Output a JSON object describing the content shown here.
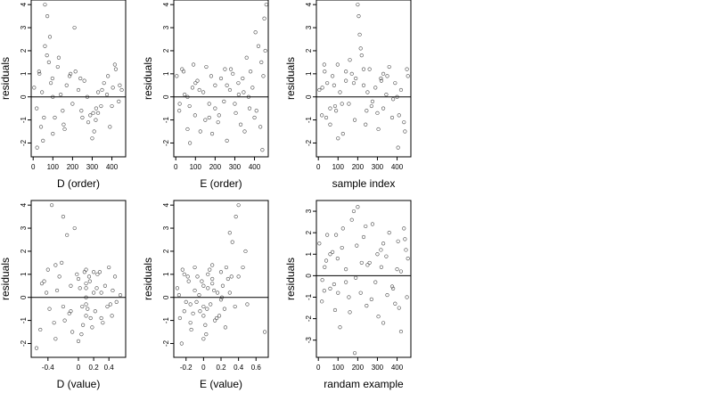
{
  "chart_data": [
    {
      "type": "scatter",
      "xlabel": "D (order)",
      "ylabel": "residuals",
      "xlim": [
        -10,
        470
      ],
      "ylim": [
        -2.6,
        4.2
      ],
      "xticks": [
        0,
        100,
        200,
        300,
        400
      ],
      "yticks": [
        -2,
        -1,
        0,
        1,
        2,
        3,
        4
      ],
      "reference_line_y": 0,
      "grid": false,
      "point_style": "open-circle",
      "x": [
        5,
        18,
        32,
        45,
        60,
        72,
        85,
        98,
        110,
        125,
        140,
        155,
        170,
        185,
        200,
        215,
        230,
        245,
        260,
        275,
        290,
        305,
        318,
        330,
        345,
        360,
        375,
        390,
        405,
        420,
        435,
        450,
        60,
        70,
        80,
        100,
        40,
        55,
        130,
        160,
        210,
        240,
        280,
        300,
        310,
        320,
        330,
        380,
        415,
        440,
        20,
        100,
        150,
        190,
        250,
        350,
        400,
        30,
        50,
        90
      ],
      "y": [
        0.4,
        -0.5,
        1.0,
        0.2,
        4.0,
        3.5,
        2.6,
        0.8,
        -0.9,
        1.3,
        0.1,
        -1.2,
        0.5,
        0.9,
        -0.3,
        1.1,
        0.3,
        -0.6,
        0.7,
        0.0,
        -0.8,
        -0.7,
        -1.0,
        0.2,
        -0.4,
        0.6,
        0.1,
        -1.3,
        0.4,
        1.2,
        -0.2,
        0.3,
        2.2,
        1.8,
        1.5,
        -1.6,
        -1.3,
        -0.9,
        1.7,
        -1.4,
        3.0,
        0.8,
        -1.1,
        -1.8,
        -1.5,
        -0.5,
        -0.7,
        0.9,
        1.4,
        0.5,
        -2.2,
        0.0,
        -0.6,
        1.0,
        -0.9,
        0.3,
        -0.4,
        1.1,
        -1.9,
        0.6
      ]
    },
    {
      "type": "scatter",
      "xlabel": "E (order)",
      "ylabel": "residuals",
      "xlim": [
        -10,
        470
      ],
      "ylim": [
        -2.6,
        4.2
      ],
      "xticks": [
        0,
        100,
        200,
        300,
        400
      ],
      "yticks": [
        -2,
        -1,
        0,
        1,
        2,
        3,
        4
      ],
      "reference_line_y": 0,
      "grid": false,
      "point_style": "open-circle",
      "x": [
        5,
        18,
        32,
        45,
        60,
        72,
        85,
        98,
        110,
        125,
        140,
        155,
        170,
        185,
        200,
        215,
        230,
        245,
        260,
        275,
        290,
        305,
        318,
        330,
        345,
        360,
        375,
        390,
        405,
        420,
        435,
        450,
        460,
        455,
        445,
        430,
        400,
        380,
        40,
        70,
        120,
        180,
        220,
        260,
        300,
        340,
        60,
        150,
        250,
        350,
        20,
        100,
        200,
        320,
        410,
        440,
        90,
        170,
        280,
        370
      ],
      "y": [
        0.9,
        -0.6,
        1.2,
        0.1,
        -1.4,
        -2.0,
        0.4,
        -0.8,
        0.7,
        -1.5,
        0.2,
        1.3,
        -0.3,
        -1.6,
        0.5,
        -1.1,
        0.8,
        -0.2,
        -1.9,
        0.3,
        1.0,
        -0.7,
        0.6,
        -1.2,
        0.2,
        1.7,
        -0.5,
        0.4,
        2.8,
        2.2,
        1.5,
        3.4,
        4.0,
        2.0,
        0.9,
        -1.3,
        -0.9,
        1.1,
        1.1,
        -0.4,
        0.3,
        0.9,
        -0.8,
        0.5,
        -0.3,
        0.8,
        0.0,
        -1.0,
        1.2,
        -1.5,
        -0.3,
        0.6,
        -0.5,
        0.1,
        -0.6,
        -2.3,
        1.4,
        -0.9,
        1.2,
        0.0
      ]
    },
    {
      "type": "scatter",
      "xlabel": "sample index",
      "ylabel": "residuals",
      "xlim": [
        -10,
        470
      ],
      "ylim": [
        -2.6,
        4.2
      ],
      "xticks": [
        0,
        100,
        200,
        300,
        400
      ],
      "yticks": [
        -2,
        -1,
        0,
        1,
        2,
        3,
        4
      ],
      "reference_line_y": 0,
      "grid": false,
      "point_style": "open-circle",
      "x": [
        5,
        18,
        32,
        45,
        60,
        72,
        85,
        98,
        110,
        125,
        140,
        155,
        170,
        185,
        200,
        205,
        210,
        215,
        220,
        230,
        245,
        260,
        275,
        290,
        305,
        318,
        330,
        345,
        360,
        375,
        390,
        405,
        420,
        435,
        450,
        40,
        80,
        120,
        160,
        250,
        300,
        350,
        400,
        440,
        20,
        100,
        180,
        270,
        330,
        380,
        60,
        140,
        240,
        320,
        410,
        455,
        30,
        90,
        190,
        230
      ],
      "y": [
        0.3,
        -0.8,
        1.1,
        0.6,
        -1.2,
        0.9,
        -0.4,
        1.4,
        0.2,
        -1.6,
        0.7,
        -0.3,
        1.0,
        -1.0,
        4.0,
        3.5,
        2.7,
        2.1,
        1.8,
        0.5,
        -0.6,
        1.2,
        -0.2,
        0.4,
        -1.4,
        0.8,
        -0.5,
        0.1,
        1.3,
        -0.9,
        0.6,
        -2.2,
        0.3,
        -1.1,
        1.2,
        -0.9,
        0.5,
        -0.3,
        1.6,
        0.2,
        -0.7,
        0.9,
        0.0,
        -1.5,
        0.4,
        -1.8,
        0.6,
        -0.4,
        1.0,
        -0.1,
        -0.5,
        1.1,
        -1.2,
        0.7,
        -0.8,
        0.9,
        1.4,
        -0.6,
        0.8,
        1.2
      ]
    },
    {
      "type": "scatter",
      "xlabel": "D (value)",
      "ylabel": "residuals",
      "xlim": [
        -0.62,
        0.62
      ],
      "ylim": [
        -2.6,
        4.2
      ],
      "xticks": [
        -0.4,
        0.0,
        0.2,
        0.4
      ],
      "yticks": [
        -2,
        -1,
        0,
        1,
        2,
        3,
        4
      ],
      "reference_line_y": 0,
      "grid": false,
      "point_style": "open-circle",
      "x": [
        -0.55,
        -0.48,
        -0.4,
        -0.35,
        -0.28,
        -0.2,
        -0.15,
        -0.1,
        -0.05,
        0.0,
        0.05,
        0.08,
        0.1,
        0.1,
        0.1,
        0.12,
        0.15,
        0.18,
        0.2,
        0.25,
        0.3,
        0.35,
        0.42,
        0.48,
        0.55,
        -0.3,
        -0.25,
        -0.18,
        -0.08,
        0.02,
        0.06,
        0.1,
        0.14,
        0.22,
        0.28,
        0.38,
        0.45,
        -0.5,
        -0.42,
        -0.32,
        -0.22,
        -0.12,
        -0.02,
        0.04,
        0.1,
        0.16,
        0.24,
        0.32,
        0.4,
        0.5,
        -0.45,
        -0.38,
        -0.3,
        -0.2,
        -0.1,
        0.0,
        0.1,
        0.2,
        0.3,
        0.44
      ],
      "y": [
        -2.2,
        0.6,
        1.2,
        4.0,
        0.3,
        3.5,
        2.7,
        -0.6,
        3.0,
        0.8,
        -0.4,
        1.1,
        -0.8,
        0.4,
        1.2,
        -0.5,
        0.7,
        -1.3,
        0.2,
        1.0,
        -0.9,
        0.5,
        -0.3,
        0.9,
        0.1,
        -1.8,
        0.9,
        -1.0,
        -1.5,
        0.4,
        -1.2,
        0.0,
        0.9,
        -0.6,
        1.1,
        -0.4,
        0.3,
        -1.4,
        0.2,
        -1.1,
        1.5,
        -0.7,
        1.0,
        -1.6,
        0.6,
        -0.9,
        0.4,
        -1.1,
        1.3,
        -0.2,
        0.7,
        -0.5,
        1.4,
        -0.4,
        0.5,
        -1.9,
        -0.3,
        1.1,
        0.2,
        -0.8
      ]
    },
    {
      "type": "scatter",
      "xlabel": "E (value)",
      "ylabel": "residuals",
      "xlim": [
        -0.34,
        0.74
      ],
      "ylim": [
        -2.6,
        4.2
      ],
      "xticks": [
        -0.2,
        0.0,
        0.2,
        0.4,
        0.6
      ],
      "yticks": [
        -2,
        -1,
        0,
        1,
        2,
        3,
        4
      ],
      "reference_line_y": 0,
      "grid": false,
      "point_style": "open-circle",
      "x": [
        -0.3,
        -0.27,
        -0.24,
        -0.2,
        -0.17,
        -0.14,
        -0.1,
        -0.07,
        -0.04,
        0.0,
        0.0,
        0.0,
        0.02,
        0.05,
        0.08,
        0.1,
        0.13,
        0.16,
        0.2,
        0.24,
        0.28,
        0.3,
        0.33,
        0.37,
        0.4,
        0.45,
        0.48,
        0.7,
        -0.25,
        -0.18,
        -0.12,
        -0.05,
        0.03,
        0.07,
        0.12,
        0.18,
        0.22,
        0.26,
        0.32,
        0.36,
        -0.28,
        -0.22,
        -0.15,
        -0.08,
        -0.02,
        0.04,
        0.1,
        0.15,
        0.21,
        0.25,
        0.4,
        0.5,
        -0.22,
        -0.1,
        0.0,
        0.1,
        0.2,
        -0.15,
        0.05,
        0.3
      ],
      "y": [
        0.4,
        -0.9,
        1.2,
        -0.2,
        0.7,
        -1.4,
        0.3,
        0.9,
        -0.6,
        -0.4,
        -0.8,
        0.5,
        -1.2,
        1.0,
        -0.3,
        0.6,
        -1.0,
        0.2,
        1.1,
        -0.5,
        0.8,
        2.8,
        2.4,
        3.5,
        4.0,
        1.3,
        2.0,
        -1.5,
        -2.0,
        0.9,
        -0.7,
        0.1,
        -1.6,
        1.2,
        0.3,
        -0.8,
        0.5,
        1.3,
        0.9,
        -0.4,
        0.1,
        1.0,
        -1.1,
        -0.2,
        0.7,
        -0.5,
        1.4,
        -0.9,
        0.0,
        -1.3,
        0.9,
        -0.3,
        -0.6,
        1.3,
        -1.8,
        0.8,
        -0.1,
        -0.3,
        0.4,
        0.2
      ]
    },
    {
      "type": "scatter",
      "xlabel": "randam example",
      "ylabel": "residuals",
      "xlim": [
        -10,
        470
      ],
      "ylim": [
        -3.8,
        3.5
      ],
      "xticks": [
        0,
        100,
        200,
        300,
        400
      ],
      "yticks": [
        -3,
        -2,
        -1,
        0,
        1,
        2,
        3
      ],
      "reference_line_y": 0,
      "grid": false,
      "point_style": "open-circle",
      "x": [
        5,
        18,
        32,
        45,
        60,
        72,
        85,
        98,
        110,
        125,
        140,
        155,
        170,
        180,
        185,
        195,
        200,
        215,
        230,
        245,
        260,
        275,
        290,
        305,
        318,
        330,
        345,
        360,
        375,
        390,
        405,
        420,
        435,
        450,
        40,
        80,
        120,
        160,
        250,
        300,
        350,
        400,
        440,
        20,
        100,
        220,
        270,
        330,
        380,
        60,
        140,
        240,
        320,
        410,
        455,
        30,
        90,
        190,
        420,
        445
      ],
      "y": [
        1.5,
        -1.2,
        0.4,
        1.9,
        -0.6,
        1.1,
        -1.6,
        0.8,
        -2.4,
        2.2,
        0.3,
        -1.0,
        2.6,
        3.0,
        -3.6,
        1.4,
        3.2,
        -0.8,
        1.8,
        -1.4,
        0.6,
        2.4,
        -0.3,
        -1.9,
        1.2,
        -2.2,
        0.9,
        2.0,
        -0.5,
        -1.3,
        1.6,
        0.2,
        2.2,
        -1.0,
        0.7,
        -0.4,
        1.3,
        -1.7,
        0.5,
        1.0,
        -0.9,
        0.3,
        1.7,
        -0.2,
        -0.8,
        0.6,
        -1.1,
        1.5,
        -0.6,
        1.0,
        -0.3,
        2.3,
        0.4,
        -1.5,
        0.8,
        -0.7,
        1.9,
        -0.1,
        -2.6,
        1.2
      ]
    }
  ]
}
